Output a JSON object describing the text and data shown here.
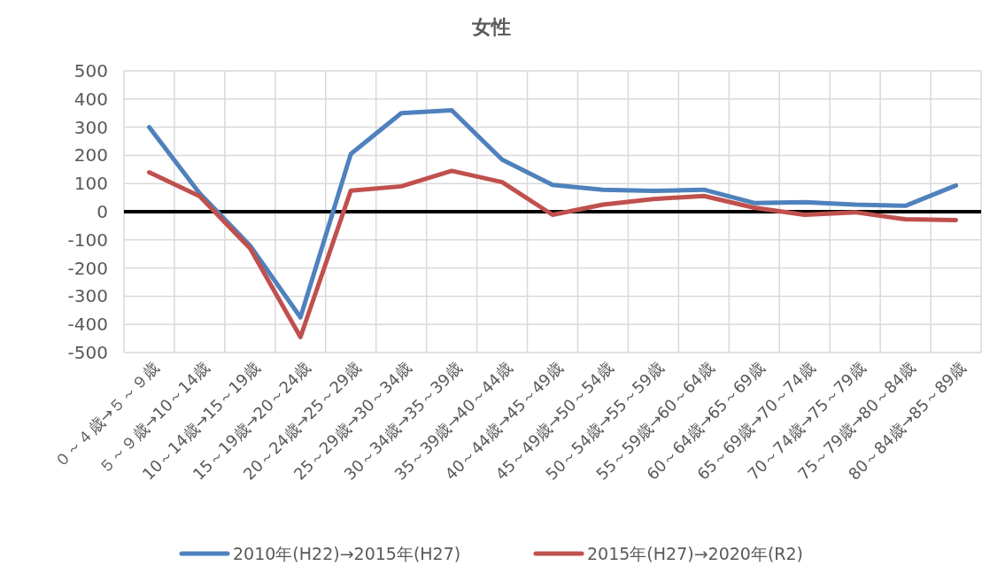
{
  "chart_data": {
    "type": "line",
    "title": "女性",
    "categories": [
      "０～４歳→５～９歳",
      "５～９歳→10～14歳",
      "10～14歳→15～19歳",
      "15～19歳→20～24歳",
      "20～24歳→25～29歳",
      "25～29歳→30～34歳",
      "30～34歳→35～39歳",
      "35～39歳→40～44歳",
      "40～44歳→45～49歳",
      "45～49歳→50～54歳",
      "50～54歳→55～59歳",
      "55～59歳→60～64歳",
      "60～64歳→65～69歳",
      "65～69歳→70～74歳",
      "70～74歳→75～79歳",
      "75～79歳→80～84歳",
      "80～84歳→85～89歳"
    ],
    "series": [
      {
        "name": "2010年(H22)→2015年(H27)",
        "color": "#4f81bd",
        "values": [
          300,
          65,
          -120,
          -375,
          205,
          350,
          360,
          185,
          95,
          78,
          74,
          78,
          31,
          34,
          25,
          21,
          93
        ]
      },
      {
        "name": "2015年(H27)→2020年(R2)",
        "color": "#c0504d",
        "values": [
          140,
          55,
          -130,
          -445,
          75,
          90,
          145,
          105,
          -11,
          25,
          45,
          56,
          14,
          -11,
          -2,
          -27,
          -30
        ]
      }
    ],
    "ylim": [
      -500,
      500
    ],
    "yticks": [
      -500,
      -400,
      -300,
      -200,
      -100,
      0,
      100,
      200,
      300,
      400,
      500
    ],
    "ref_lines": [
      {
        "axis": "y",
        "value": 0,
        "color": "#000000"
      }
    ],
    "grid": true,
    "legend": "bottom",
    "marker": "none",
    "line_style": "solid"
  }
}
